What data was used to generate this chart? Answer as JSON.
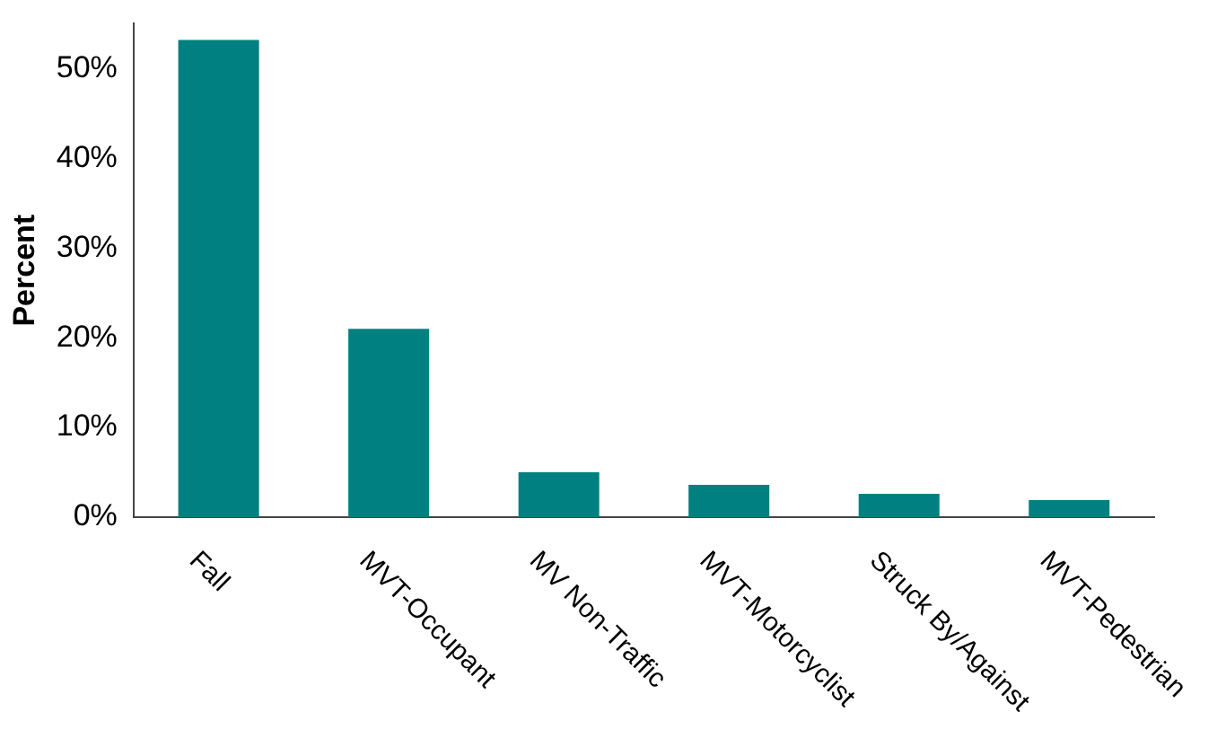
{
  "chart_data": {
    "type": "bar",
    "ylabel": "Percent",
    "categories": [
      "Fall",
      "MVT-Occupant",
      "MV Non-Traffic",
      "MVT-Motorcyclist",
      "Struck By/Against",
      "MVT-Pedestrian"
    ],
    "values": [
      53.2,
      21,
      5,
      3.6,
      2.6,
      1.9
    ],
    "color": "#008080",
    "ylim": [
      0,
      55
    ],
    "yticks": [
      {
        "value": 0,
        "label": "0%"
      },
      {
        "value": 10,
        "label": "10%"
      },
      {
        "value": 20,
        "label": "20%"
      },
      {
        "value": 30,
        "label": "30%"
      },
      {
        "value": 40,
        "label": "40%"
      },
      {
        "value": 50,
        "label": "50%"
      }
    ],
    "grid": false,
    "legend": false
  }
}
